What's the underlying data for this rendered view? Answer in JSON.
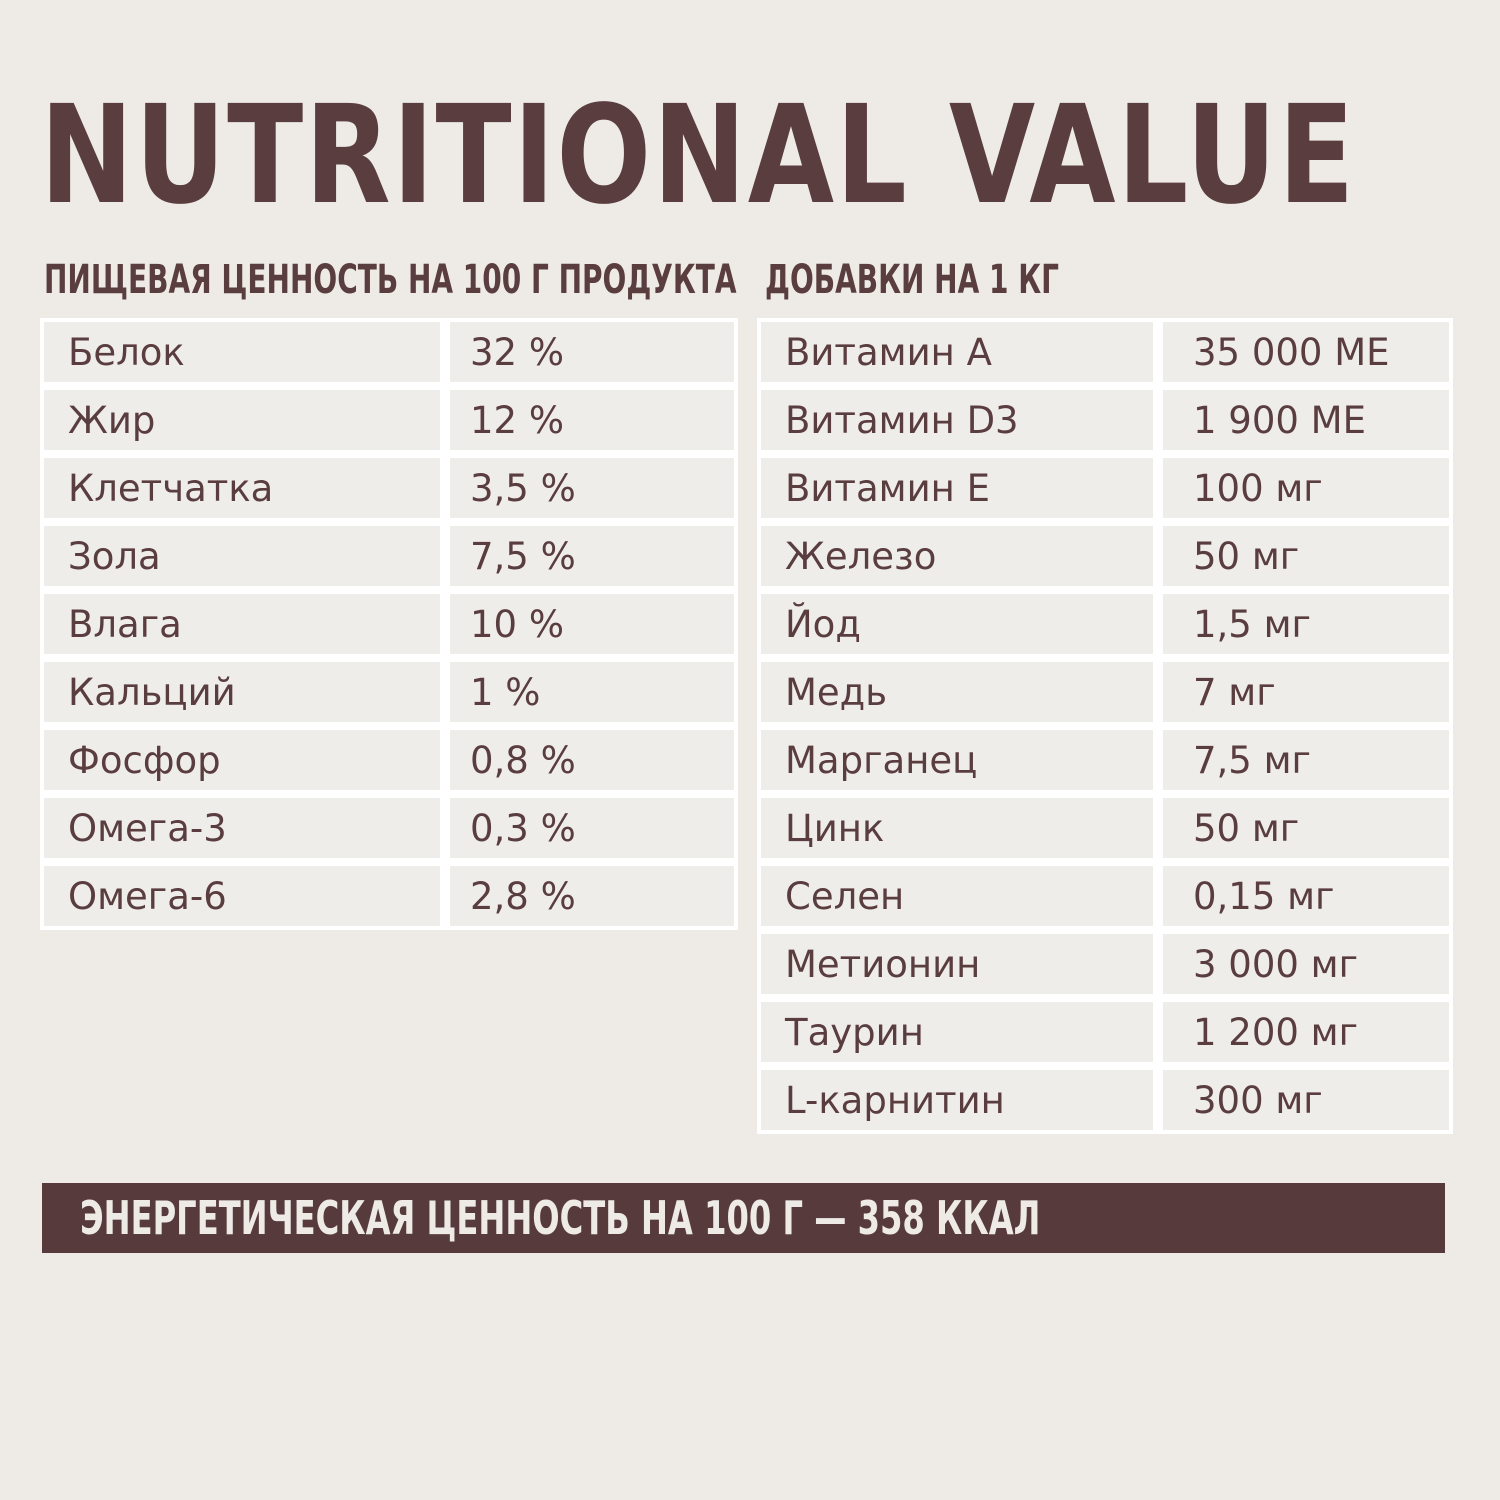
{
  "title": "NUTRITIONAL VALUE",
  "nutrition": {
    "heading": "ПИЩЕВАЯ ЦЕННОСТЬ НА 100 Г ПРОДУКТА",
    "rows": [
      {
        "name": "Белок",
        "value": "32 %"
      },
      {
        "name": "Жир",
        "value": "12 %"
      },
      {
        "name": "Клетчатка",
        "value": "3,5 %"
      },
      {
        "name": "Зола",
        "value": "7,5 %"
      },
      {
        "name": "Влага",
        "value": "10 %"
      },
      {
        "name": "Кальций",
        "value": "1 %"
      },
      {
        "name": "Фосфор",
        "value": "0,8 %"
      },
      {
        "name": "Омега-3",
        "value": "0,3 %"
      },
      {
        "name": "Омега-6",
        "value": "2,8 %"
      }
    ]
  },
  "additives": {
    "heading": "ДОБАВКИ НА 1 КГ",
    "rows": [
      {
        "name": "Витамин А",
        "value": "35 000 МЕ"
      },
      {
        "name": "Витамин D3",
        "value": "1 900 МЕ"
      },
      {
        "name": "Витамин Е",
        "value": "100 мг"
      },
      {
        "name": "Железо",
        "value": "50 мг"
      },
      {
        "name": "Йод",
        "value": "1,5 мг"
      },
      {
        "name": "Медь",
        "value": "7 мг"
      },
      {
        "name": "Марганец",
        "value": "7,5 мг"
      },
      {
        "name": "Цинк",
        "value": "50 мг"
      },
      {
        "name": "Селен",
        "value": "0,15 мг"
      },
      {
        "name": "Метионин",
        "value": "3 000 мг"
      },
      {
        "name": "Таурин",
        "value": "1 200 мг"
      },
      {
        "name": "L-карнитин",
        "value": "300 мг"
      }
    ]
  },
  "energy": "ЭНЕРГЕТИЧЕСКАЯ ЦЕННОСТЬ НА 100 Г — 358 ККАЛ",
  "colors": {
    "background": "#eeebe7",
    "text": "#5a3d3f",
    "banner": "#573a3c",
    "table_border": "#ffffff",
    "cell": "#efedea"
  }
}
